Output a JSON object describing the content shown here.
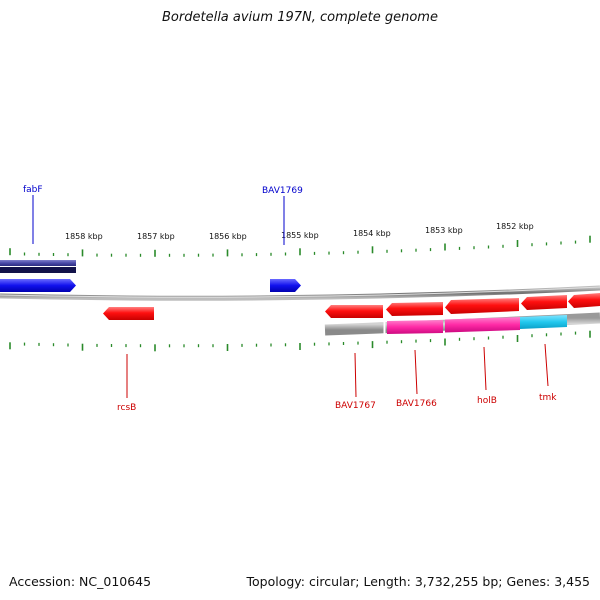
{
  "title": "Bordetella avium 197N, complete genome",
  "footer": {
    "accession_label": "Accession:",
    "accession": "NC_010645",
    "topology_label": "Topology:",
    "topology": "circular;",
    "length_label": "Length:",
    "length": "3,732,255 bp;",
    "genes_label": "Genes:",
    "genes": "3,455"
  },
  "colors": {
    "forward_gene": "#1a1aff",
    "reverse_gene": "#ff1a1a",
    "forward_label": "#0000cc",
    "reverse_label": "#cc0000",
    "tick": "#2a8a2a",
    "backbone": "#808080",
    "magenta_feature": "#ff33aa",
    "cyan_feature": "#33ccee",
    "navy_feature": "#5555aa"
  },
  "scale_labels": [
    "1858 kbp",
    "1857 kbp",
    "1856 kbp",
    "1855 kbp",
    "1854 kbp",
    "1853 kbp",
    "1852 kbp"
  ],
  "forward_labels": [
    "fabF",
    "BAV1769"
  ],
  "reverse_labels": [
    "rcsB",
    "BAV1767",
    "BAV1766",
    "holB",
    "tmk"
  ]
}
